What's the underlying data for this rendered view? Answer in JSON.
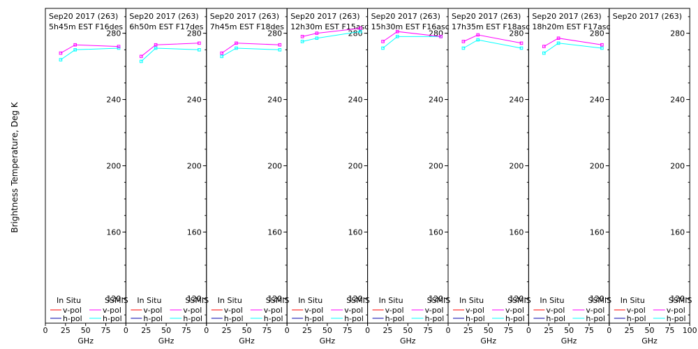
{
  "figure": {
    "ylabel": "Brightness Temperature, Deg K",
    "xlabel": "GHz",
    "legend": {
      "insitu_header": "In Situ",
      "ssmis_header": "SSMIS",
      "vpol": "v-pol",
      "hpol": "h-pol"
    }
  },
  "colors": {
    "insitu_v": "#ff0000",
    "insitu_h": "#0000aa",
    "ssmis_v": "#ff00ff",
    "ssmis_h": "#00ffff",
    "frame": "#000000"
  },
  "chart_data": {
    "type": "line",
    "xlim": [
      0,
      100
    ],
    "ylim": [
      105,
      295
    ],
    "yticks": [
      120,
      160,
      200,
      240,
      280
    ],
    "xticks": [
      0,
      25,
      50,
      75,
      100
    ],
    "grid": false,
    "legend_placement": "bottom",
    "panels": [
      {
        "line1": "Sep20 2017 (263)",
        "line2": "5h45m  EST F16des",
        "ssmis_v": {
          "x": [
            19,
            37,
            91
          ],
          "y": [
            268,
            273,
            272
          ]
        },
        "ssmis_h": {
          "x": [
            19,
            37,
            91
          ],
          "y": [
            264,
            270,
            271
          ]
        }
      },
      {
        "line1": "Sep20 2017 (263)",
        "line2": "6h50m  EST F17des",
        "ssmis_v": {
          "x": [
            19,
            37,
            91
          ],
          "y": [
            266,
            273,
            274
          ]
        },
        "ssmis_h": {
          "x": [
            19,
            37,
            91
          ],
          "y": [
            263,
            271,
            270
          ]
        }
      },
      {
        "line1": "Sep20 2017 (263)",
        "line2": "7h45m  EST F18des",
        "ssmis_v": {
          "x": [
            19,
            37,
            91
          ],
          "y": [
            268,
            274,
            273
          ]
        },
        "ssmis_h": {
          "x": [
            19,
            37,
            91
          ],
          "y": [
            266,
            271,
            270
          ]
        }
      },
      {
        "line1": "Sep20 2017 (263)",
        "line2": "12h30m  EST F15asc",
        "ssmis_v": {
          "x": [
            19,
            37,
            91
          ],
          "y": [
            278,
            280,
            283
          ]
        },
        "ssmis_h": {
          "x": [
            19,
            37,
            91
          ],
          "y": [
            275,
            277,
            281
          ]
        }
      },
      {
        "line1": "Sep20 2017 (263)",
        "line2": "15h30m  EST F16asc",
        "ssmis_v": {
          "x": [
            19,
            37,
            91
          ],
          "y": [
            275,
            281,
            278
          ]
        },
        "ssmis_h": {
          "x": [
            19,
            37,
            91
          ],
          "y": [
            271,
            278,
            278
          ]
        }
      },
      {
        "line1": "Sep20 2017 (263)",
        "line2": "17h35m  EST F18asc",
        "ssmis_v": {
          "x": [
            19,
            37,
            91
          ],
          "y": [
            275,
            279,
            274
          ]
        },
        "ssmis_h": {
          "x": [
            19,
            37,
            91
          ],
          "y": [
            271,
            276,
            271
          ]
        }
      },
      {
        "line1": "Sep20 2017 (263)",
        "line2": "18h20m  EST F17asc",
        "ssmis_v": {
          "x": [
            19,
            37,
            91
          ],
          "y": [
            272,
            277,
            273
          ]
        },
        "ssmis_h": {
          "x": [
            19,
            37,
            91
          ],
          "y": [
            268,
            274,
            271
          ]
        }
      },
      {
        "line1": "Sep20 2017 (263)",
        "line2": "",
        "ssmis_v": {
          "x": [],
          "y": []
        },
        "ssmis_h": {
          "x": [],
          "y": []
        }
      }
    ]
  }
}
